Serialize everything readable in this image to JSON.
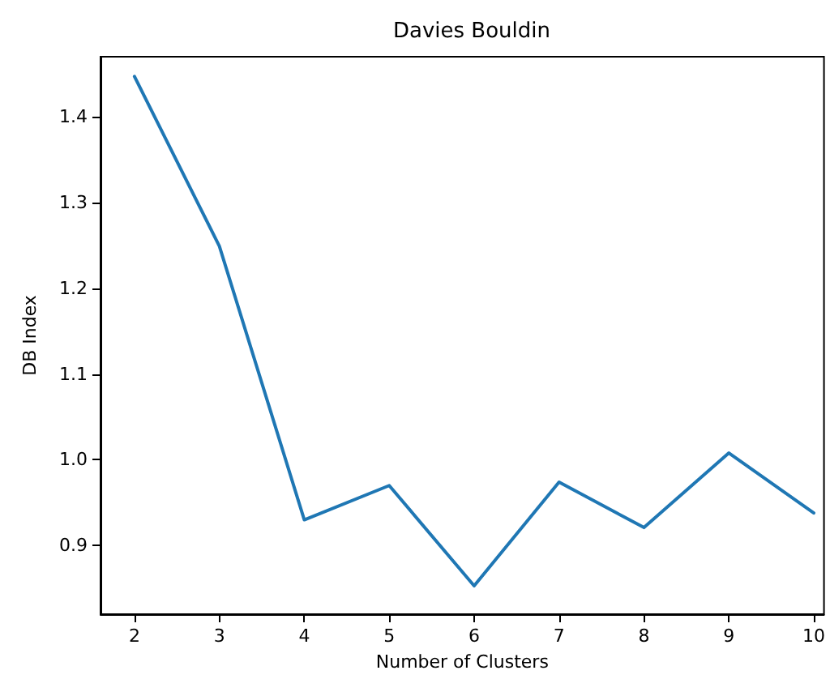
{
  "chart_data": {
    "type": "line",
    "title": "Davies Bouldin",
    "xlabel": "Number of Clusters",
    "ylabel": "DB Index",
    "x": [
      2,
      3,
      4,
      5,
      6,
      7,
      8,
      9,
      10
    ],
    "series": [
      {
        "color": "#1f77b4",
        "values": [
          1.447,
          1.249,
          0.93,
          0.97,
          0.853,
          0.974,
          0.921,
          1.008,
          0.938
        ]
      }
    ],
    "xlim": [
      1.6,
      10.12
    ],
    "xticks": [
      2,
      3,
      4,
      5,
      6,
      7,
      8,
      9,
      10
    ],
    "ylim": [
      0.82,
      1.47
    ],
    "yticks": [
      0.9,
      {
        "value": 1.0,
        "label": "1.0"
      },
      1.1,
      1.2,
      1.3,
      1.4
    ],
    "grid": false,
    "marker": "none",
    "line_style": "solid"
  }
}
